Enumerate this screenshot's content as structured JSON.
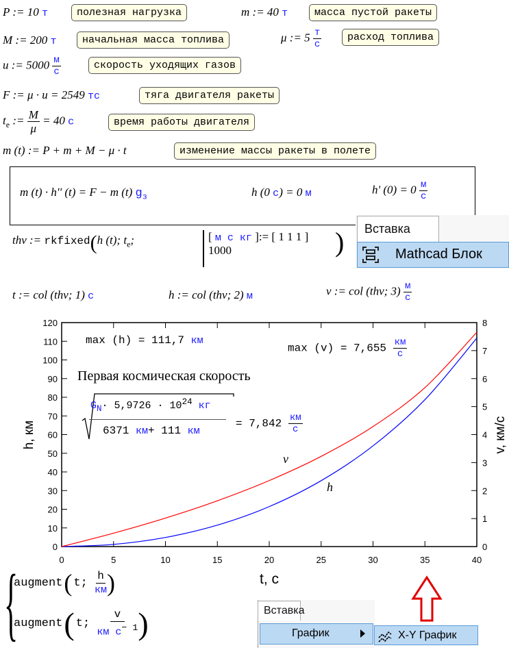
{
  "defs": {
    "P": {
      "expr": "P := 10",
      "unit": "т",
      "comment": "полезная нагрузка"
    },
    "m": {
      "expr": "m := 40",
      "unit": "т",
      "comment": "масса пустой ракеты"
    },
    "M": {
      "expr": "M := 200",
      "unit": "т",
      "comment": "начальная масса топлива"
    },
    "mu": {
      "expr": "μ := 5",
      "unit_num": "т",
      "unit_den": "с",
      "comment": "расход топлива"
    },
    "u": {
      "expr": "u := 5000",
      "unit_num": "м",
      "unit_den": "с",
      "comment": "скорость уходящих газов"
    },
    "F": {
      "expr": "F := μ · u = 2549",
      "unit": "тс",
      "comment": "тяга двигателя ракеты"
    },
    "te": {
      "lhs": "t",
      "sub": "e",
      "assign": ":=",
      "num": "M",
      "den": "μ",
      "rhs": "= 40",
      "unit": "с",
      "comment": "время работы двигателя"
    },
    "mt": {
      "expr": "m (t) := P + m + M − μ · t",
      "comment": "изменение массы ракеты в полете"
    }
  },
  "ode": {
    "eq": "m (t) · h'' (t) = F − m (t)",
    "g": "g",
    "g_sub": "з",
    "ic1": "h (0",
    "ic1_unit": "с",
    "ic1_rhs": ") = 0",
    "ic1_res_unit": "м",
    "ic2": "h' (0) = 0",
    "ic2_num": "м",
    "ic2_den": "с"
  },
  "solver": {
    "lhs": "thv :=",
    "fn": "rkfixed",
    "args": "h (t); t",
    "sub": "e",
    "units": "м с кг",
    "assign": ":= [ 1 1 1 ]",
    "steps": "1000"
  },
  "cols": {
    "t": "t := col (thv; 1)",
    "t_unit": "с",
    "h": "h := col (thv; 2)",
    "h_unit": "м",
    "v": "v := col (thv; 3)",
    "v_num": "м",
    "v_den": "с"
  },
  "annotations": {
    "maxh": "max (h) = 111,7",
    "maxh_unit": "км",
    "maxv": "max (v) = 7,655",
    "maxv_num": "км",
    "maxv_den": "с",
    "title": "Первая космическая скорость",
    "gn": "G",
    "gn_sub": "N",
    "mass": "· 5,9726 · 10",
    "exp": "24",
    "kg": "кг",
    "den1": "6371",
    "km": "км",
    "den2": "+ 111",
    "res": "= 7,842",
    "res_num": "км",
    "res_den": "с",
    "label_v": "v",
    "label_h": "h"
  },
  "augment": {
    "fn": "augment",
    "arg": "t;",
    "h_num": "h",
    "h_den": "км",
    "v_num": "v",
    "v_den": "км с",
    "v_exp": "− 1"
  },
  "menus": {
    "top": {
      "tab": "Вставка",
      "item": "Mathcad Блок"
    },
    "bottom": {
      "tab": "Вставка",
      "item": "График",
      "submenu": "X-Y График"
    }
  },
  "colors": {
    "units": "#1a1aff",
    "v_series": "#ff0000",
    "h_series": "#0000ff",
    "comment_bg": "#ffffe6",
    "menu_highlight": "#bcd9f3",
    "arrow": "#e00000"
  },
  "icons": {
    "mathcad_block": "region-block-icon",
    "xy_plot": "xy-graph-icon",
    "arrow": "up-arrow-icon",
    "submenu": "chevron-right-icon"
  },
  "chart_data": {
    "type": "line",
    "xlabel": "t, с",
    "ylabel": "h, км",
    "y2label": "v, км/с",
    "xlim": [
      0,
      40
    ],
    "ylim": [
      0,
      120
    ],
    "y2lim": [
      0,
      8
    ],
    "xticks": [
      0,
      5,
      10,
      15,
      20,
      25,
      30,
      35,
      40
    ],
    "yticks": [
      0,
      10,
      20,
      30,
      40,
      50,
      60,
      70,
      80,
      90,
      100,
      110,
      120
    ],
    "y2ticks": [
      0,
      1,
      2,
      3,
      4,
      5,
      6,
      7,
      8
    ],
    "grid": false,
    "x": [
      0,
      5,
      10,
      15,
      20,
      25,
      30,
      35,
      40
    ],
    "series": [
      {
        "name": "h",
        "axis": "left",
        "color": "#0000ff",
        "values": [
          0,
          1.17,
          4.88,
          11.48,
          21.42,
          35.3,
          53.96,
          78.7,
          111.69
        ]
      },
      {
        "name": "v",
        "axis": "right",
        "color": "#ff0000",
        "values": [
          0,
          0.478,
          1.018,
          1.636,
          2.358,
          3.221,
          4.287,
          5.677,
          7.655
        ]
      }
    ]
  }
}
